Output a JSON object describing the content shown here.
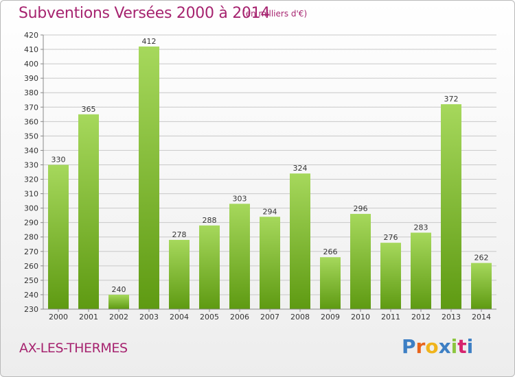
{
  "header": {
    "title": "Subventions Versées 2000 à 2014",
    "unit": "(en milliers d'€)"
  },
  "footer": {
    "commune": "AX-LES-THERMES",
    "logo_text": "Proxiti",
    "logo_colors": [
      "#3d7fc4",
      "#e8641b",
      "#f0b41c",
      "#3d7fc4",
      "#8cc63f",
      "#d6246e",
      "#3d7fc4"
    ]
  },
  "colors": {
    "title": "#a6236f",
    "bar_top": "#a6d85c",
    "bar_bottom": "#5e9a12",
    "grid": "#c8c8c8",
    "text": "#333333"
  },
  "chart_data": {
    "type": "bar",
    "categories": [
      "2000",
      "2001",
      "2002",
      "2003",
      "2004",
      "2005",
      "2006",
      "2007",
      "2008",
      "2009",
      "2010",
      "2011",
      "2012",
      "2013",
      "2014"
    ],
    "values": [
      330,
      365,
      240,
      412,
      278,
      288,
      303,
      294,
      324,
      266,
      296,
      276,
      283,
      372,
      262
    ],
    "title": "Subventions Versées 2000 à 2014",
    "ylabel": "",
    "xlabel": "",
    "ylim": [
      230,
      420
    ],
    "yticks": [
      230,
      240,
      250,
      260,
      270,
      280,
      290,
      300,
      310,
      320,
      330,
      340,
      350,
      360,
      370,
      380,
      390,
      400,
      410,
      420
    ],
    "grid": true
  }
}
